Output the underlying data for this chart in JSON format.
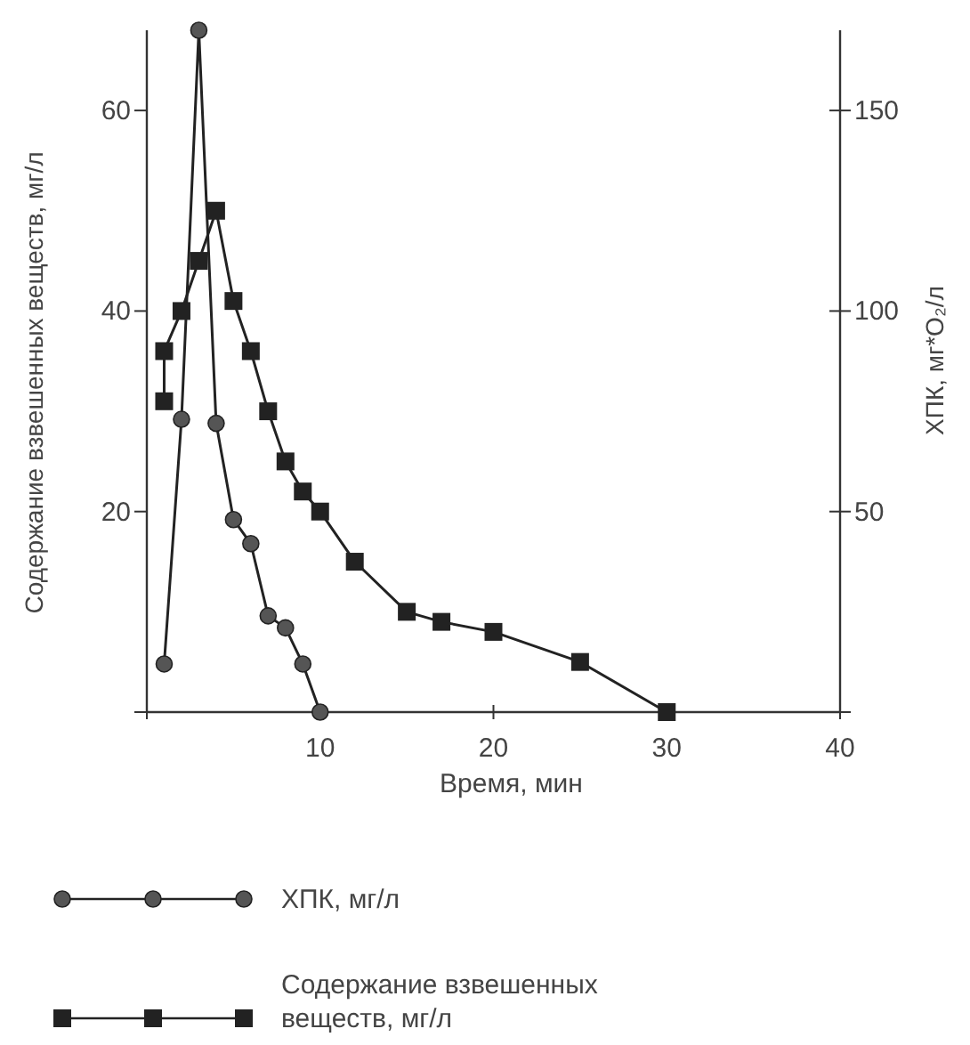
{
  "chart_data": {
    "type": "line",
    "xlabel": "Время, мин",
    "ylabel": "Содержание взвешенных веществ, мг/л",
    "y2label": "ХПК, мг*O₂/л",
    "xlim": [
      0,
      40
    ],
    "xticks": [
      {
        "value": 0,
        "label": null
      },
      10,
      20,
      30,
      40
    ],
    "ylim": [
      0,
      68
    ],
    "yticks": [
      {
        "value": 0,
        "label": null
      },
      20,
      40,
      60
    ],
    "y2lim": [
      0,
      170
    ],
    "y2ticks": [
      {
        "value": 0,
        "label": null
      },
      50,
      100,
      150
    ],
    "legend": "bottom",
    "line_style": "solid",
    "grid": false,
    "series": [
      {
        "name": "ХПК, мг/л",
        "color": "#555555",
        "marker": "circle",
        "axis": "y2",
        "x": [
          1,
          2,
          3,
          4,
          5,
          6,
          7,
          8,
          9,
          10
        ],
        "values": [
          12,
          73,
          170,
          72,
          48,
          42,
          24,
          21,
          12,
          0
        ]
      },
      {
        "name": "Содержание взвешенных веществ, мг/л",
        "color": "#222222",
        "marker": "square",
        "x": [
          1,
          1,
          2,
          3,
          4,
          5,
          6,
          7,
          8,
          9,
          10,
          12,
          15,
          17,
          20,
          25,
          30
        ],
        "values": [
          31,
          36,
          40,
          45,
          50,
          41,
          36,
          30,
          25,
          22,
          20,
          15,
          10,
          9,
          8,
          5,
          0
        ]
      }
    ]
  }
}
